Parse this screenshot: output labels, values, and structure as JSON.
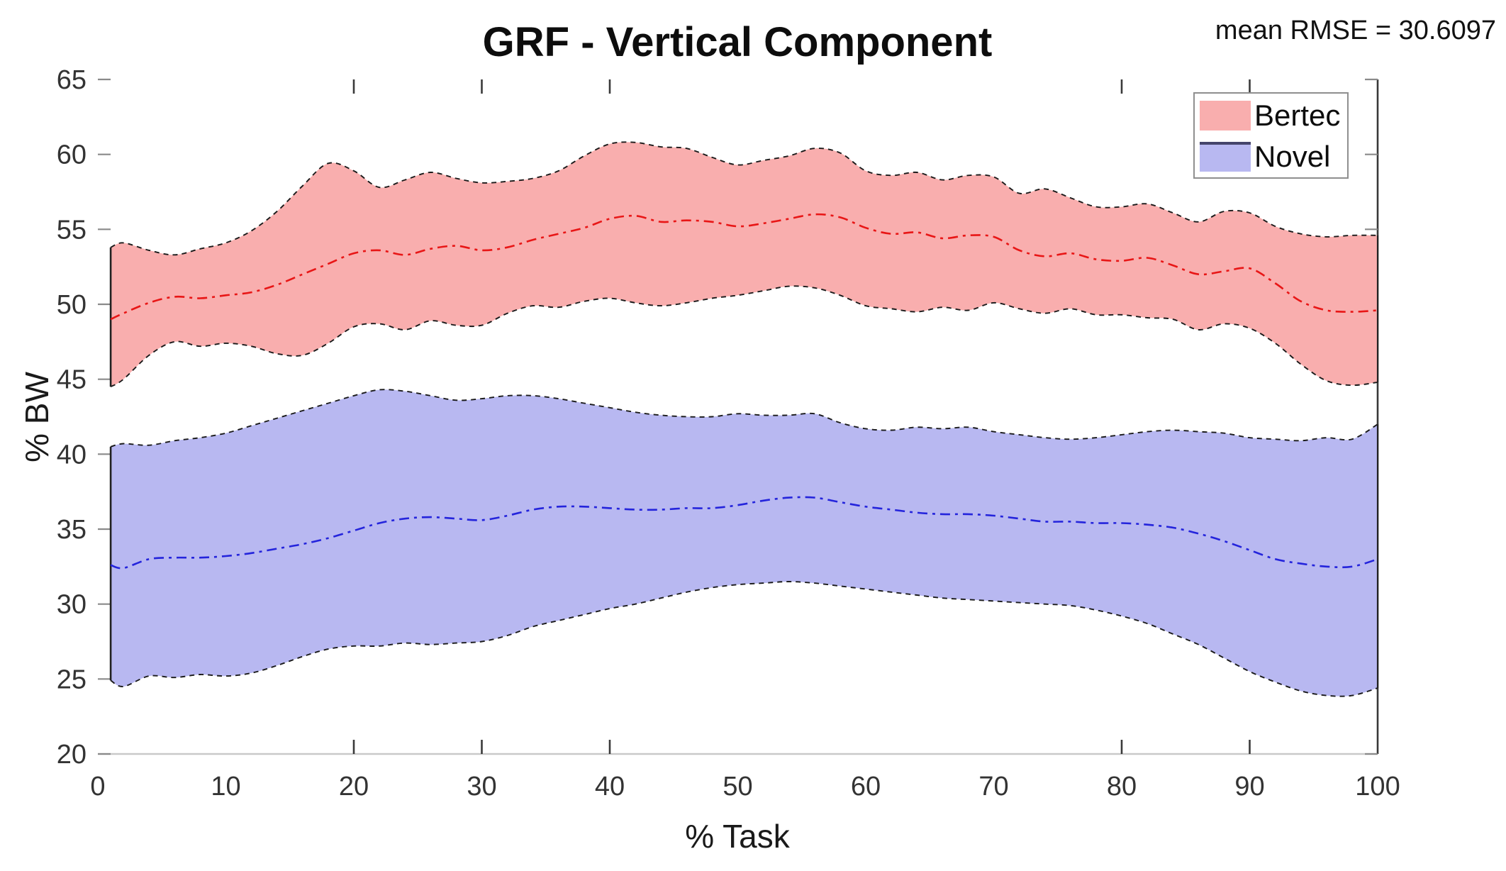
{
  "chart_data": {
    "type": "area",
    "title": "GRF - Vertical Component",
    "annotation": "mean RMSE = 30.6097",
    "xlabel": "% Task",
    "ylabel": "% BW",
    "xlim": [
      0,
      100
    ],
    "ylim": [
      20,
      65
    ],
    "xticks": [
      0,
      10,
      20,
      30,
      40,
      50,
      60,
      70,
      80,
      90,
      100
    ],
    "yticks": [
      20,
      25,
      30,
      35,
      40,
      45,
      50,
      55,
      60,
      65
    ],
    "boxed_tick_values": [
      20,
      30,
      40,
      80,
      90
    ],
    "grid": false,
    "legend_position": "top-right",
    "x": [
      1,
      2,
      4,
      6,
      8,
      10,
      12,
      14,
      16,
      18,
      20,
      22,
      24,
      26,
      28,
      30,
      32,
      34,
      36,
      38,
      40,
      42,
      44,
      46,
      48,
      50,
      52,
      54,
      56,
      58,
      60,
      62,
      64,
      66,
      68,
      70,
      72,
      74,
      76,
      78,
      80,
      82,
      84,
      86,
      88,
      90,
      92,
      94,
      96,
      98,
      100
    ],
    "series": [
      {
        "name": "Bertec",
        "fill": "#f9aeae",
        "line": "#e81616",
        "edge": "#1a1a1a",
        "upper": [
          53.8,
          54.1,
          53.6,
          53.3,
          53.7,
          54.1,
          54.9,
          56.2,
          57.9,
          59.4,
          58.9,
          57.8,
          58.3,
          58.8,
          58.4,
          58.1,
          58.2,
          58.4,
          58.9,
          59.9,
          60.7,
          60.8,
          60.5,
          60.4,
          59.8,
          59.3,
          59.6,
          59.9,
          60.4,
          60.1,
          58.9,
          58.6,
          58.8,
          58.3,
          58.6,
          58.5,
          57.4,
          57.7,
          57.1,
          56.5,
          56.5,
          56.7,
          56.1,
          55.5,
          56.2,
          56.1,
          55.2,
          54.7,
          54.5,
          54.6,
          54.6
        ],
        "mean": [
          49.0,
          49.4,
          50.1,
          50.5,
          50.4,
          50.6,
          50.8,
          51.3,
          52.0,
          52.7,
          53.4,
          53.6,
          53.3,
          53.7,
          53.9,
          53.6,
          53.8,
          54.3,
          54.7,
          55.1,
          55.7,
          55.9,
          55.5,
          55.6,
          55.5,
          55.2,
          55.4,
          55.7,
          56.0,
          55.8,
          55.1,
          54.7,
          54.8,
          54.4,
          54.6,
          54.5,
          53.6,
          53.2,
          53.4,
          53.0,
          52.9,
          53.1,
          52.6,
          52.0,
          52.2,
          52.4,
          51.4,
          50.2,
          49.6,
          49.5,
          49.6
        ],
        "lower": [
          44.5,
          45.0,
          46.6,
          47.5,
          47.2,
          47.4,
          47.2,
          46.7,
          46.6,
          47.4,
          48.5,
          48.7,
          48.3,
          48.9,
          48.6,
          48.6,
          49.4,
          49.9,
          49.8,
          50.2,
          50.4,
          50.1,
          49.9,
          50.1,
          50.4,
          50.6,
          50.9,
          51.2,
          51.1,
          50.6,
          49.9,
          49.7,
          49.5,
          49.8,
          49.6,
          50.1,
          49.7,
          49.4,
          49.7,
          49.3,
          49.3,
          49.1,
          49.0,
          48.3,
          48.7,
          48.4,
          47.4,
          46.0,
          44.9,
          44.6,
          44.8
        ]
      },
      {
        "name": "Novel",
        "fill": "#b8b8f1",
        "line": "#2424dc",
        "edge": "#1a1a1a",
        "upper": [
          40.5,
          40.7,
          40.6,
          40.9,
          41.1,
          41.4,
          41.9,
          42.4,
          42.9,
          43.4,
          43.9,
          44.3,
          44.2,
          43.9,
          43.6,
          43.7,
          43.9,
          43.9,
          43.7,
          43.4,
          43.1,
          42.8,
          42.6,
          42.5,
          42.5,
          42.7,
          42.6,
          42.6,
          42.7,
          42.1,
          41.7,
          41.6,
          41.8,
          41.7,
          41.8,
          41.5,
          41.3,
          41.1,
          41.0,
          41.1,
          41.3,
          41.5,
          41.6,
          41.5,
          41.4,
          41.1,
          41.0,
          40.9,
          41.1,
          41.0,
          42.0
        ],
        "mean": [
          32.6,
          32.4,
          33.0,
          33.1,
          33.1,
          33.2,
          33.4,
          33.7,
          34.0,
          34.4,
          34.9,
          35.4,
          35.7,
          35.8,
          35.7,
          35.6,
          35.9,
          36.3,
          36.5,
          36.5,
          36.4,
          36.3,
          36.3,
          36.4,
          36.4,
          36.6,
          36.9,
          37.1,
          37.1,
          36.8,
          36.5,
          36.3,
          36.1,
          36.0,
          36.0,
          35.9,
          35.7,
          35.5,
          35.5,
          35.4,
          35.4,
          35.3,
          35.1,
          34.7,
          34.2,
          33.6,
          33.0,
          32.7,
          32.5,
          32.5,
          33.0
        ],
        "lower": [
          24.9,
          24.5,
          25.2,
          25.1,
          25.3,
          25.2,
          25.4,
          25.9,
          26.5,
          27.0,
          27.2,
          27.2,
          27.4,
          27.3,
          27.4,
          27.5,
          27.9,
          28.5,
          28.9,
          29.3,
          29.7,
          30.0,
          30.4,
          30.8,
          31.1,
          31.3,
          31.4,
          31.5,
          31.4,
          31.2,
          31.0,
          30.8,
          30.6,
          30.4,
          30.3,
          30.2,
          30.1,
          30.0,
          29.9,
          29.6,
          29.2,
          28.7,
          28.0,
          27.3,
          26.4,
          25.5,
          24.8,
          24.2,
          23.9,
          23.9,
          24.4
        ]
      }
    ]
  },
  "style_colors": {
    "bottom_spine": "#c9c9c9",
    "right_spine": "#383838",
    "dark_tick": "#3a3a3a",
    "side_tick": "#8a8a8a",
    "tick_label": "#333333",
    "novel_swatch_top": "#45456b",
    "end_cap": "#222222"
  }
}
